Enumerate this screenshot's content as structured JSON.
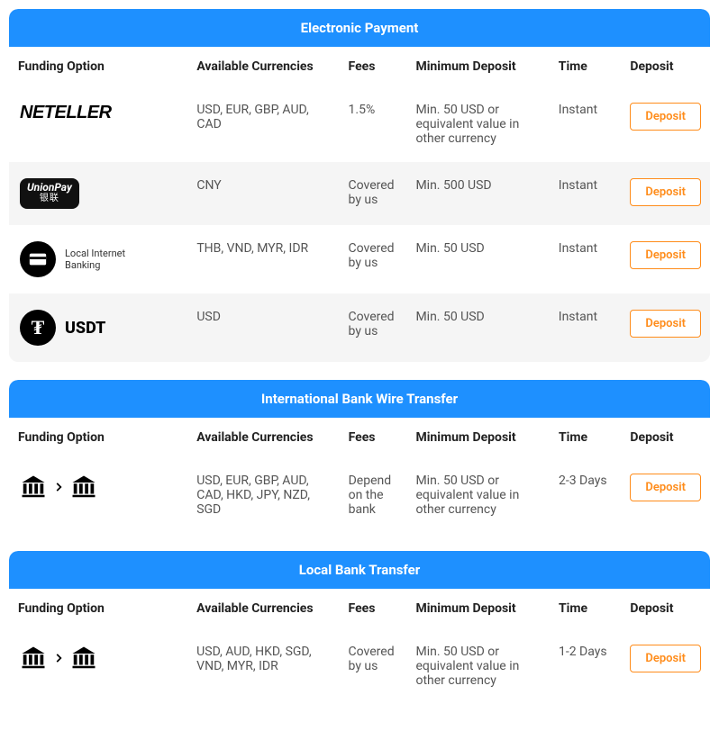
{
  "columns": {
    "funding_option": "Funding Option",
    "available_currencies": "Available Currencies",
    "fees": "Fees",
    "minimum_deposit": "Minimum Deposit",
    "time": "Time",
    "deposit": "Deposit"
  },
  "deposit_button_label": "Deposit",
  "sections": [
    {
      "title": "Electronic Payment",
      "rows": [
        {
          "logo": "neteller",
          "currencies": "USD, EUR, GBP, AUD, CAD",
          "fees": "1.5%",
          "min": "Min. 50 USD or equivalent value in other currency",
          "time": "Instant",
          "alt": false
        },
        {
          "logo": "unionpay",
          "currencies": "CNY",
          "fees": "Covered by us",
          "min": "Min. 500 USD",
          "time": "Instant",
          "alt": true
        },
        {
          "logo": "lib",
          "lib_label": "Local Internet Banking",
          "currencies": "THB, VND, MYR, IDR",
          "fees": "Covered by us",
          "min": "Min. 50 USD",
          "time": "Instant",
          "alt": false
        },
        {
          "logo": "usdt",
          "usdt_label": "USDT",
          "currencies": "USD",
          "fees": "Covered by us",
          "min": "Min. 50 USD",
          "time": "Instant",
          "alt": true
        }
      ]
    },
    {
      "title": "International Bank Wire Transfer",
      "rows": [
        {
          "logo": "banktransfer",
          "currencies": "USD, EUR, GBP, AUD, CAD, HKD, JPY, NZD, SGD",
          "fees": "Depend on the bank",
          "min": "Min. 50 USD or equivalent value in other currency",
          "time": "2-3 Days",
          "alt": false
        }
      ]
    },
    {
      "title": "Local Bank Transfer",
      "rows": [
        {
          "logo": "banktransfer",
          "currencies": "USD, AUD, HKD, SGD, VND, MYR, IDR",
          "fees": "Covered by us",
          "min": "Min. 50 USD or equivalent value in other currency",
          "time": "1-2 Days",
          "alt": false
        }
      ]
    }
  ],
  "logos": {
    "neteller_text": "NETELLER",
    "unionpay_text_en": "UnionPay",
    "unionpay_text_cn": "银联"
  },
  "colors": {
    "header_bg": "#1e90ff",
    "button_border": "#ff8c1a",
    "alt_row_bg": "#f5f5f5"
  }
}
